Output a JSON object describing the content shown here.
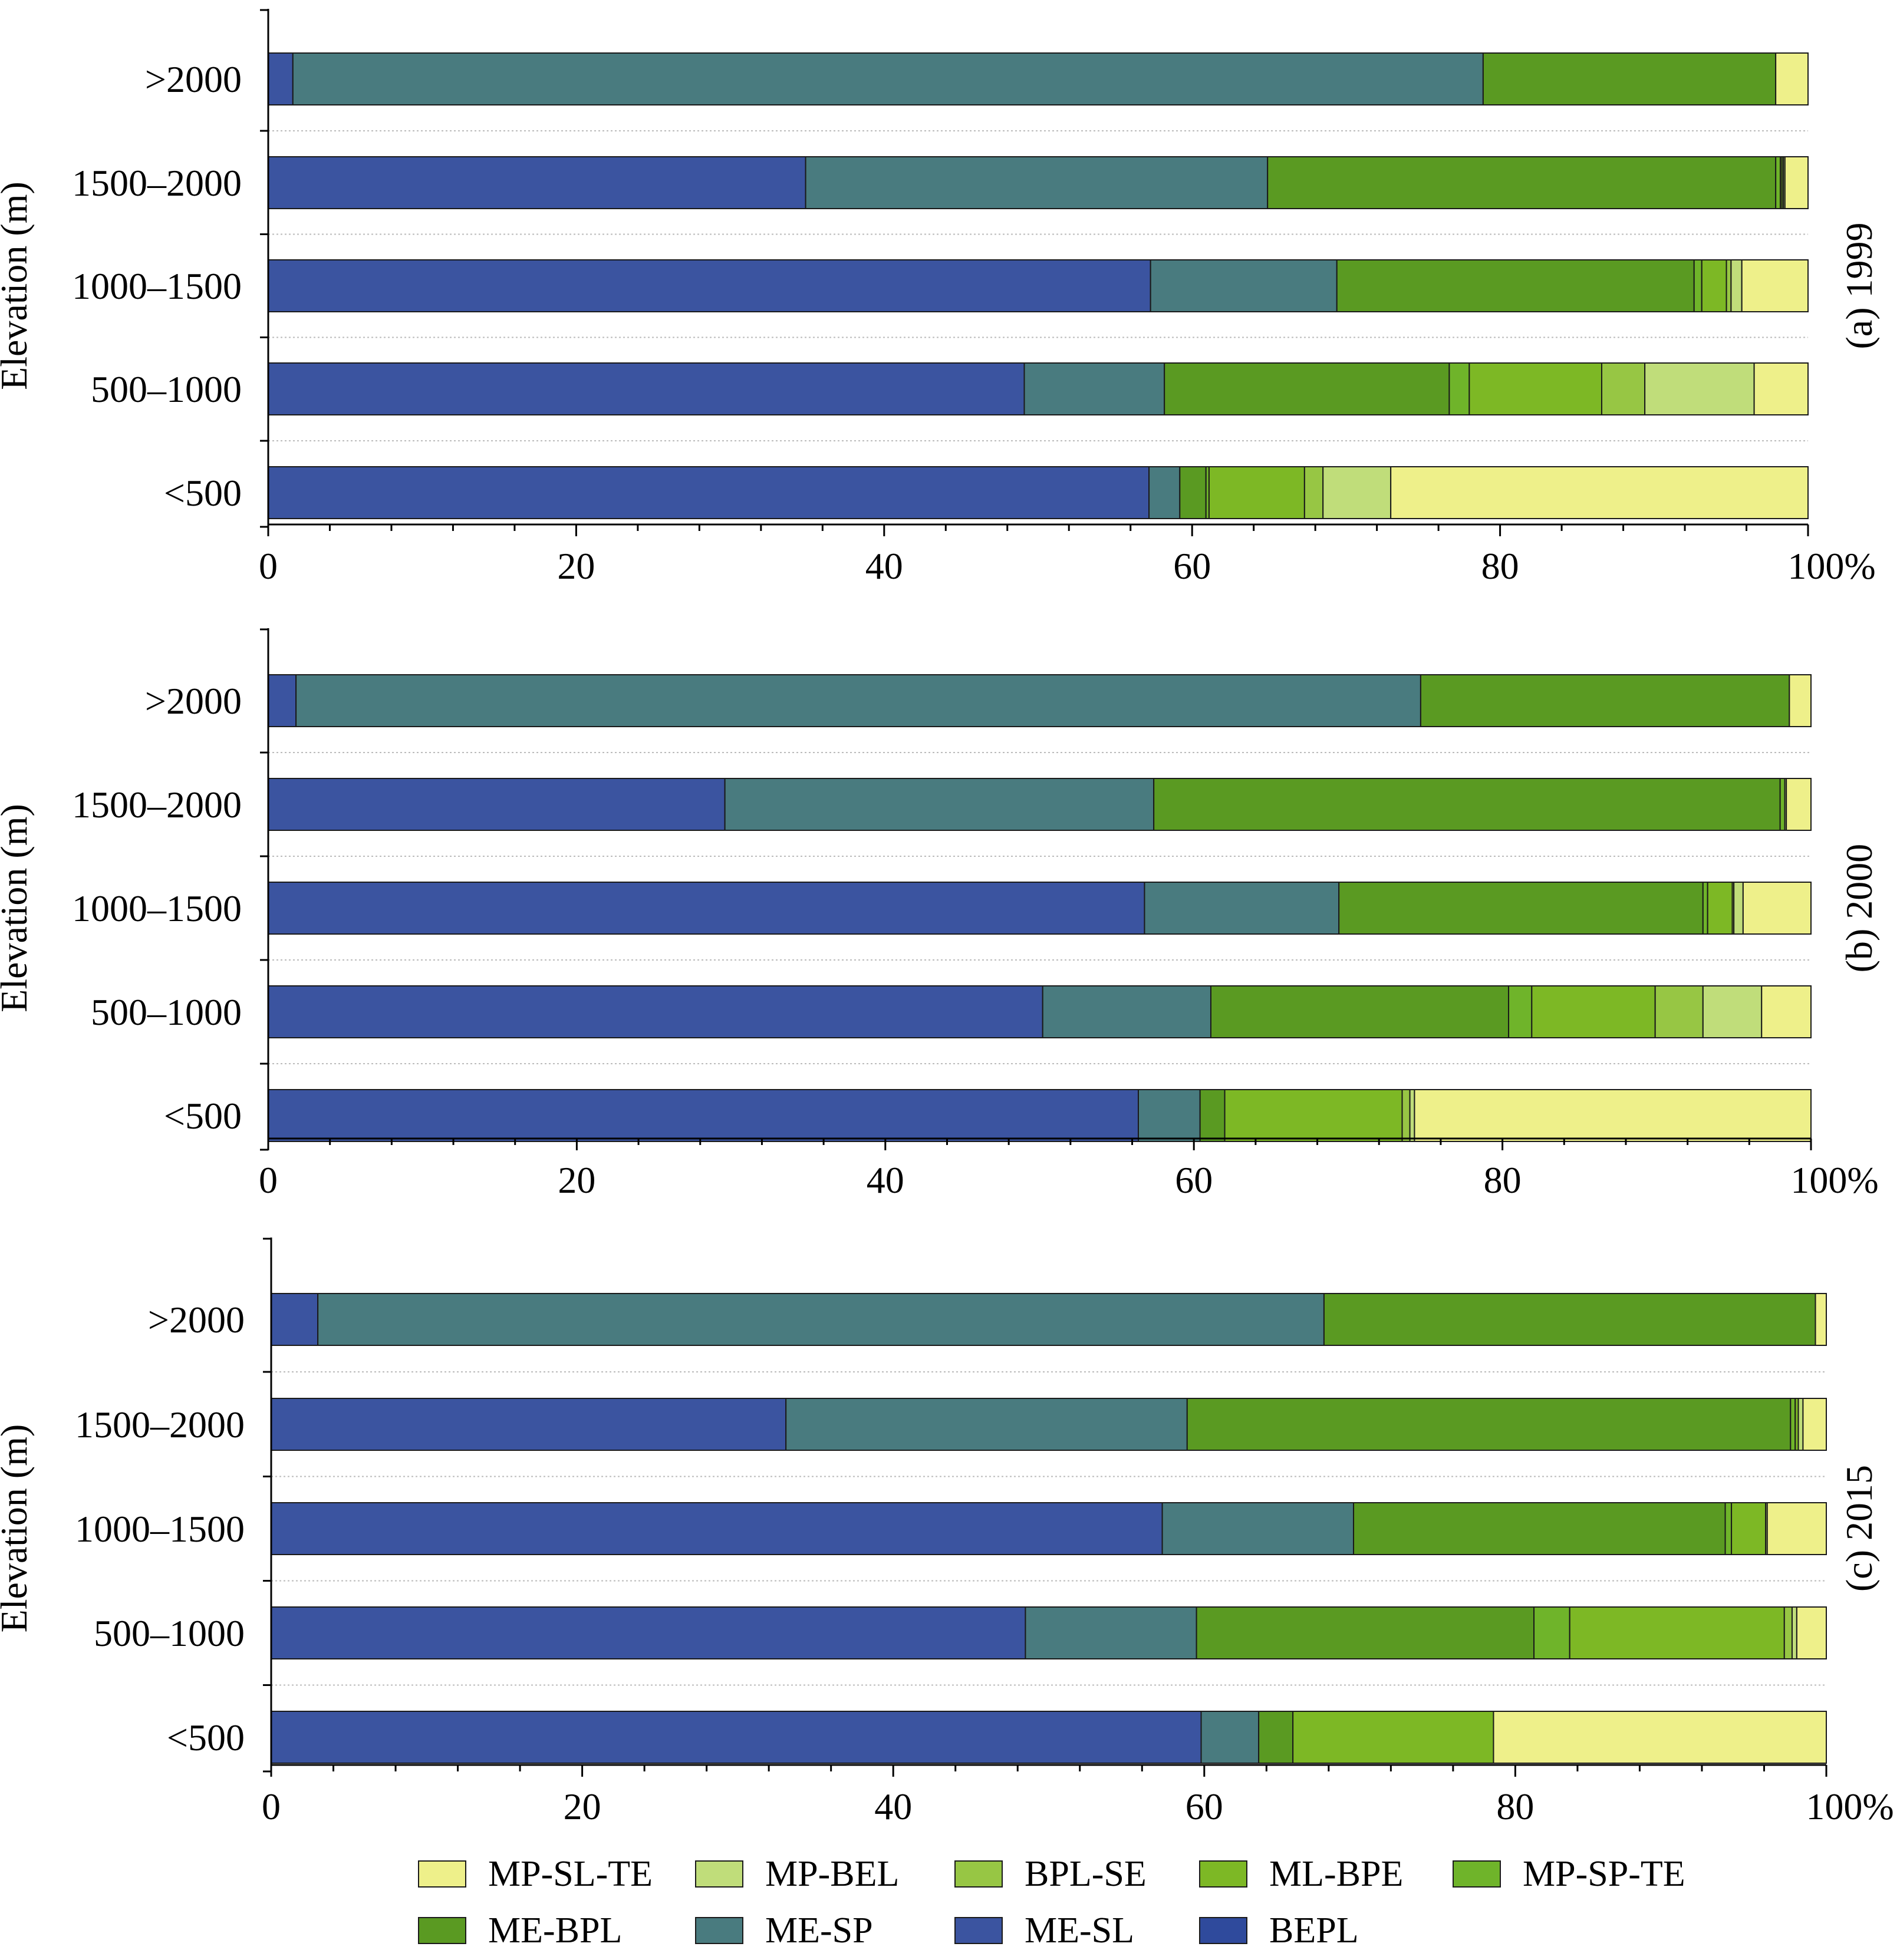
{
  "colors": {
    "MP-SL-TE": "#eef08a",
    "MP-BEL": "#c0dd7a",
    "BPL-SE": "#97c644",
    "ML-BPE": "#7db825",
    "MP-SP-TE": "#6fb42a",
    "ME-BPL": "#5a9a22",
    "ME-SP": "#497b7f",
    "ME-SL": "#3b54a0",
    "BEPL": "#2f4a9c"
  },
  "legend": {
    "items": [
      "MP-SL-TE",
      "MP-BEL",
      "BPL-SE",
      "ML-BPE",
      "MP-SP-TE",
      "ME-BPL",
      "ME-SP",
      "ME-SL",
      "BEPL"
    ]
  },
  "chart_data": [
    {
      "type": "bar",
      "orientation": "horizontal",
      "stacked": true,
      "panel_label": "(a) 1999",
      "ylabel": "Elevation (m)",
      "categories": [
        ">2000",
        "1500–2000",
        "1000–1500",
        "500–1000",
        "<500"
      ],
      "xlim": [
        0,
        100
      ],
      "xticks": [
        "0",
        "20",
        "40",
        "60",
        "80",
        "100%"
      ],
      "series": [
        {
          "name": "BEPL",
          "values": [
            0,
            0,
            0,
            0,
            0
          ]
        },
        {
          "name": "ME-SL",
          "values": [
            1.6,
            34.9,
            57.3,
            49.1,
            57.2
          ]
        },
        {
          "name": "ME-SP",
          "values": [
            77.3,
            30.0,
            12.1,
            9.1,
            2.0
          ]
        },
        {
          "name": "ME-BPL",
          "values": [
            19.0,
            33.0,
            23.2,
            18.5,
            1.7
          ]
        },
        {
          "name": "MP-SP-TE",
          "values": [
            0,
            0.3,
            0.5,
            1.3,
            0.2
          ]
        },
        {
          "name": "ML-BPE",
          "values": [
            0,
            0.1,
            1.6,
            8.6,
            6.2
          ]
        },
        {
          "name": "BPL-SE",
          "values": [
            0,
            0.1,
            0.3,
            2.8,
            1.2
          ]
        },
        {
          "name": "MP-BEL",
          "values": [
            0,
            0.1,
            0.7,
            7.1,
            4.4
          ]
        },
        {
          "name": "MP-SL-TE",
          "values": [
            2.1,
            1.5,
            4.3,
            3.5,
            27.1
          ]
        }
      ]
    },
    {
      "type": "bar",
      "orientation": "horizontal",
      "stacked": true,
      "panel_label": "(b) 2000",
      "ylabel": "Elevation (m)",
      "categories": [
        ">2000",
        "1500–2000",
        "1000–1500",
        "500–1000",
        "<500"
      ],
      "xlim": [
        0,
        100
      ],
      "xticks": [
        "0",
        "20",
        "40",
        "60",
        "80",
        "100%"
      ],
      "series": [
        {
          "name": "BEPL",
          "values": [
            0,
            0,
            0,
            0,
            0
          ]
        },
        {
          "name": "ME-SL",
          "values": [
            1.8,
            29.6,
            56.8,
            50.2,
            56.4
          ]
        },
        {
          "name": "ME-SP",
          "values": [
            72.9,
            27.8,
            12.6,
            10.9,
            4.0
          ]
        },
        {
          "name": "ME-BPL",
          "values": [
            23.9,
            40.6,
            23.6,
            19.3,
            1.6
          ]
        },
        {
          "name": "MP-SP-TE",
          "values": [
            0,
            0.3,
            0.3,
            1.5,
            0
          ]
        },
        {
          "name": "ML-BPE",
          "values": [
            0,
            0,
            1.6,
            8.0,
            11.5
          ]
        },
        {
          "name": "BPL-SE",
          "values": [
            0,
            0,
            0.1,
            3.1,
            0.5
          ]
        },
        {
          "name": "MP-BEL",
          "values": [
            0,
            0.1,
            0.6,
            3.8,
            0.3
          ]
        },
        {
          "name": "MP-SL-TE",
          "values": [
            1.4,
            1.6,
            4.4,
            3.2,
            25.7
          ]
        }
      ]
    },
    {
      "type": "bar",
      "orientation": "horizontal",
      "stacked": true,
      "panel_label": "(c) 2015",
      "ylabel": "Elevation (m)",
      "categories": [
        ">2000",
        "1500–2000",
        "1000–1500",
        "500–1000",
        "<500"
      ],
      "xlim": [
        0,
        100
      ],
      "xticks": [
        "0",
        "20",
        "40",
        "60",
        "80",
        "100%"
      ],
      "series": [
        {
          "name": "BEPL",
          "values": [
            0,
            0,
            0,
            0,
            0
          ]
        },
        {
          "name": "ME-SL",
          "values": [
            3.0,
            33.1,
            57.3,
            48.5,
            59.8
          ]
        },
        {
          "name": "ME-SP",
          "values": [
            64.7,
            25.8,
            12.3,
            11.0,
            3.7
          ]
        },
        {
          "name": "ME-BPL",
          "values": [
            31.6,
            38.8,
            23.9,
            21.7,
            2.2
          ]
        },
        {
          "name": "MP-SP-TE",
          "values": [
            0,
            0.3,
            0.4,
            2.3,
            0
          ]
        },
        {
          "name": "ML-BPE",
          "values": [
            0,
            0.2,
            2.2,
            13.8,
            12.9
          ]
        },
        {
          "name": "BPL-SE",
          "values": [
            0,
            0,
            0,
            0.5,
            0
          ]
        },
        {
          "name": "MP-BEL",
          "values": [
            0,
            0.3,
            0.1,
            0.3,
            0
          ]
        },
        {
          "name": "MP-SL-TE",
          "values": [
            0.7,
            1.5,
            3.8,
            1.9,
            21.4
          ]
        }
      ]
    }
  ]
}
